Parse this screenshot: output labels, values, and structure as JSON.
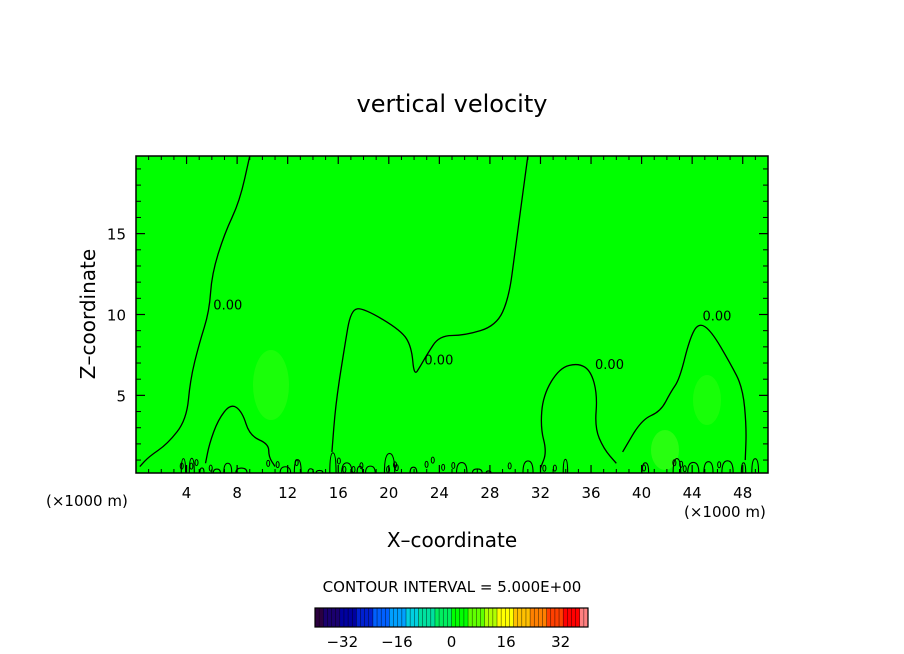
{
  "chart_data": {
    "type": "contour",
    "title": "vertical velocity",
    "xlabel": "X–coordinate",
    "ylabel": "Z–coordinate",
    "x_unit_left": "(×1000 m)",
    "x_unit_right": "(×1000 m)",
    "x_ticks": [
      4,
      8,
      12,
      16,
      20,
      24,
      28,
      32,
      36,
      40,
      44,
      48
    ],
    "x_tick_labels": [
      "4",
      "8",
      "12",
      "16",
      "20",
      "24",
      "28",
      "32",
      "36",
      "40",
      "44",
      "48"
    ],
    "y_ticks": [
      5,
      10,
      15
    ],
    "y_tick_labels": [
      "5",
      "10",
      "15"
    ],
    "xlim": [
      0,
      50
    ],
    "ylim": [
      0.2,
      19.8
    ],
    "field_color": "#00ff00",
    "contour_level_label": "0.00",
    "contour_interval_text": "CONTOUR INTERVAL = 5.000E+00",
    "colorbar": {
      "range": [
        -40,
        40
      ],
      "tick_values": [
        -32,
        -16,
        0,
        16,
        32
      ],
      "tick_labels": [
        "−32",
        "−16",
        "0",
        "16",
        "32"
      ],
      "colors": [
        "#2b0040",
        "#1a006e",
        "#0000a0",
        "#0020d0",
        "#0060ff",
        "#00a0ff",
        "#00d0e0",
        "#00e0a0",
        "#00ee60",
        "#00ff00",
        "#60ff00",
        "#b0ff00",
        "#ffff00",
        "#ffc000",
        "#ff8000",
        "#ff4000",
        "#ff0000",
        "#ff8080"
      ]
    },
    "contours": [
      {
        "label": "0.00",
        "points": [
          [
            0.3,
            0.6
          ],
          [
            1,
            1.2
          ],
          [
            2.5,
            2
          ],
          [
            4,
            3.5
          ],
          [
            4.3,
            6
          ],
          [
            5,
            8.2
          ],
          [
            5.8,
            10.2
          ],
          [
            6,
            12.5
          ],
          [
            7,
            15
          ],
          [
            8.2,
            17
          ],
          [
            9,
            19.8
          ]
        ]
      },
      {
        "label": "0.00",
        "points": [
          [
            15.5,
            1.5
          ],
          [
            15.8,
            4.5
          ],
          [
            16.5,
            8
          ],
          [
            17,
            10.3
          ],
          [
            18,
            10.4
          ],
          [
            21,
            9
          ],
          [
            21.8,
            8
          ],
          [
            22,
            6.2
          ],
          [
            22.5,
            6.8
          ],
          [
            23,
            7.5
          ],
          [
            24,
            8.7
          ],
          [
            26,
            8.7
          ],
          [
            28.5,
            9.3
          ],
          [
            29.5,
            11
          ],
          [
            30,
            14
          ],
          [
            31,
            19.8
          ]
        ]
      },
      {
        "label": "",
        "points": [
          [
            5.5,
            0.8
          ],
          [
            5.8,
            2
          ],
          [
            6.5,
            3.5
          ],
          [
            7.5,
            4.5
          ],
          [
            8.4,
            4
          ],
          [
            9,
            2.5
          ],
          [
            10.5,
            2
          ],
          [
            10.5,
            1.2
          ],
          [
            11,
            0.6
          ]
        ]
      },
      {
        "label": "0.00",
        "points": [
          [
            32,
            0.5
          ],
          [
            32.5,
            1.5
          ],
          [
            32,
            3
          ],
          [
            32.2,
            5
          ],
          [
            33.5,
            6.7
          ],
          [
            35,
            7
          ],
          [
            36,
            6.5
          ],
          [
            36.5,
            5
          ],
          [
            36.3,
            3
          ],
          [
            37,
            1.7
          ],
          [
            38,
            0.8
          ]
        ]
      },
      {
        "label": "0.00",
        "points": [
          [
            38.5,
            1.5
          ],
          [
            40,
            3.5
          ],
          [
            41.5,
            4
          ],
          [
            42.3,
            5.2
          ],
          [
            43,
            6
          ],
          [
            43.8,
            8.5
          ],
          [
            44.5,
            9.5
          ],
          [
            45.5,
            9
          ],
          [
            47,
            7
          ],
          [
            48,
            5.5
          ],
          [
            48.3,
            3
          ],
          [
            48.2,
            1
          ]
        ]
      }
    ]
  }
}
